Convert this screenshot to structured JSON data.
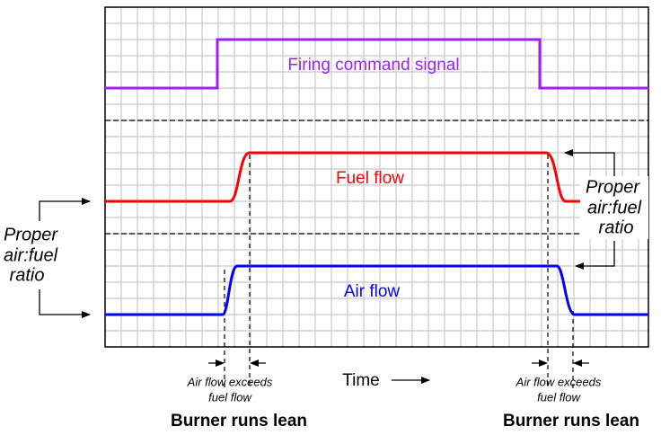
{
  "signals": {
    "firing": "Firing command signal",
    "fuel": "Fuel flow",
    "air": "Air flow"
  },
  "left_note": {
    "line1": "Proper",
    "line2": "air:fuel",
    "line3": "ratio"
  },
  "right_note": {
    "line1": "Proper",
    "line2": "air:fuel",
    "line3": "ratio"
  },
  "time_label": "Time",
  "left_event": {
    "line1": "Air flow exceeds",
    "line2": "fuel flow",
    "result": "Burner runs lean"
  },
  "right_event": {
    "line1": "Air flow exceeds",
    "line2": "fuel flow",
    "result": "Burner runs lean"
  }
}
